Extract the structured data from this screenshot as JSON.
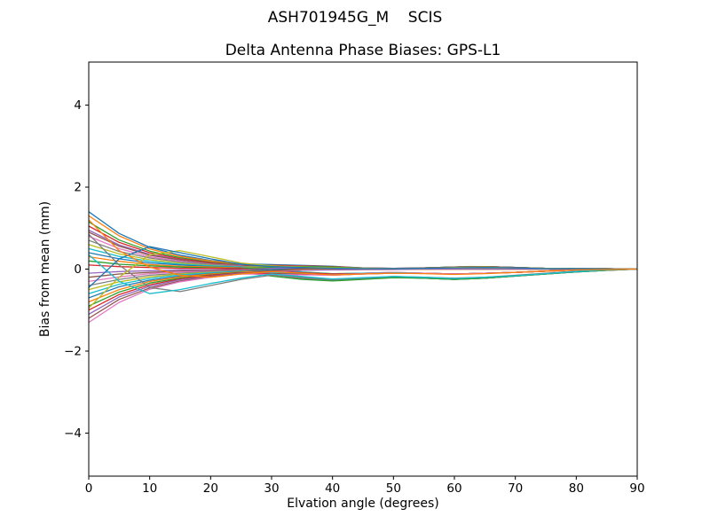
{
  "figure": {
    "suptitle": "ASH701945G_M    SCIS",
    "axes_title": "Delta Antenna Phase Biases: GPS-L1"
  },
  "chart_data": {
    "type": "line",
    "title": "Delta Antenna Phase Biases: GPS-L1",
    "suptitle": "ASH701945G_M    SCIS",
    "xlabel": "Elvation angle (degrees)",
    "ylabel": "Bias from mean (mm)",
    "xlim": [
      0,
      90
    ],
    "ylim": [
      -5.05,
      5.05
    ],
    "xticks": [
      0,
      10,
      20,
      30,
      40,
      50,
      60,
      70,
      80,
      90
    ],
    "yticks": [
      -4,
      -2,
      0,
      2,
      4
    ],
    "grid": false,
    "legend": "none",
    "background": "#ffffff",
    "axis_color": "#000000",
    "palette": [
      "#1f77b4",
      "#ff7f0e",
      "#2ca02c",
      "#d62728",
      "#9467bd",
      "#8c564b",
      "#e377c2",
      "#7f7f7f",
      "#bcbd22",
      "#17becf"
    ],
    "x": [
      0,
      5,
      10,
      15,
      20,
      25,
      30,
      35,
      40,
      45,
      50,
      55,
      60,
      65,
      70,
      75,
      80,
      85,
      90
    ],
    "series": [
      {
        "values": [
          1.4,
          0.87,
          0.53,
          0.34,
          0.21,
          0.13,
          0.11,
          0.09,
          0.07,
          0.03,
          0.02,
          0.03,
          0.05,
          0.06,
          0.04,
          0.02,
          0.01,
          0.01,
          0
        ]
      },
      {
        "values": [
          1.3,
          0.81,
          0.49,
          0.31,
          0.2,
          0.12,
          0.08,
          0.04,
          0.03,
          0.01,
          0.01,
          0,
          0,
          0,
          0,
          0,
          0,
          0,
          0
        ]
      },
      {
        "values": [
          1.15,
          0.71,
          0.44,
          0.28,
          0.17,
          0.1,
          0.02,
          -0.07,
          -0.11,
          -0.1,
          -0.08,
          -0.1,
          -0.12,
          -0.1,
          -0.08,
          -0.05,
          -0.02,
          -0.01,
          0
        ]
      },
      {
        "values": [
          1.05,
          0.65,
          0.4,
          0.25,
          0.16,
          0.09,
          0.09,
          0.08,
          0.06,
          0.03,
          0.02,
          0.03,
          0.05,
          0.06,
          0.04,
          0.02,
          0.01,
          0.01,
          0
        ]
      },
      {
        "values": [
          0.95,
          0.59,
          0.36,
          0.23,
          0.14,
          0.09,
          -0.06,
          -0.19,
          -0.25,
          -0.23,
          -0.19,
          -0.22,
          -0.25,
          -0.22,
          -0.17,
          -0.12,
          -0.07,
          -0.03,
          0
        ]
      },
      {
        "values": [
          0.9,
          0.56,
          0.34,
          0.22,
          0.14,
          0.08,
          0.05,
          0.03,
          0.02,
          0.01,
          0.01,
          0,
          0,
          0,
          0,
          0,
          0,
          0,
          0
        ]
      },
      {
        "values": [
          0.8,
          0.5,
          0.3,
          0.19,
          0.12,
          0.07,
          0.0,
          -0.08,
          -0.12,
          -0.1,
          -0.08,
          -0.1,
          -0.12,
          -0.1,
          -0.08,
          -0.05,
          -0.02,
          -0.01,
          0
        ]
      },
      {
        "values": [
          0.7,
          0.43,
          0.27,
          0.17,
          0.11,
          0.06,
          0.07,
          0.07,
          0.05,
          0.03,
          0.02,
          0.03,
          0.05,
          0.06,
          0.04,
          0.02,
          0.01,
          0.01,
          0
        ]
      },
      {
        "values": [
          0.6,
          0.37,
          0.23,
          0.14,
          0.09,
          0.05,
          0.04,
          0.02,
          0.01,
          0.01,
          0,
          0,
          0,
          0,
          0,
          0,
          0,
          0,
          0
        ]
      },
      {
        "values": [
          0.5,
          0.31,
          0.19,
          0.12,
          0.08,
          0.05,
          -0.02,
          -0.08,
          -0.12,
          -0.1,
          -0.09,
          -0.1,
          -0.12,
          -0.1,
          -0.08,
          -0.05,
          -0.02,
          -0.01,
          0
        ]
      },
      {
        "values": [
          0.4,
          0.25,
          0.15,
          0.1,
          0.06,
          0.04,
          -0.1,
          -0.21,
          -0.26,
          -0.23,
          -0.2,
          -0.22,
          -0.25,
          -0.22,
          -0.17,
          -0.12,
          -0.07,
          -0.03,
          0
        ]
      },
      {
        "values": [
          0.3,
          0.19,
          0.11,
          0.07,
          0.05,
          0.03,
          0.02,
          0.01,
          0.01,
          0,
          0,
          0,
          0,
          0,
          0,
          0,
          0,
          0,
          0
        ]
      },
      {
        "values": [
          0.2,
          0.12,
          0.08,
          0.05,
          0.03,
          0.02,
          0.04,
          0.06,
          0.05,
          0.02,
          0.01,
          0.03,
          0.05,
          0.06,
          0.04,
          0.02,
          0.01,
          0.01,
          0
        ]
      },
      {
        "values": [
          0.1,
          0.06,
          0.04,
          0.02,
          0.02,
          0.01,
          -0.04,
          -0.09,
          -0.12,
          -0.11,
          -0.09,
          -0.1,
          -0.12,
          -0.1,
          -0.08,
          -0.05,
          -0.02,
          -0.01,
          0
        ]
      },
      {
        "values": [
          -0.1,
          -0.06,
          -0.04,
          -0.02,
          -0.02,
          -0.01,
          0.02,
          0.04,
          0.03,
          0.01,
          0.0,
          0.02,
          0.04,
          0.05,
          0.03,
          0.02,
          0.01,
          0,
          0
        ]
      },
      {
        "values": [
          -0.2,
          -0.12,
          -0.08,
          -0.05,
          -0.03,
          -0.02,
          -0.01,
          -0.01,
          0,
          0,
          0,
          0,
          0,
          0,
          0,
          0,
          0,
          0,
          0
        ]
      },
      {
        "values": [
          -0.3,
          -0.19,
          -0.11,
          -0.07,
          -0.05,
          -0.03,
          -0.07,
          -0.11,
          -0.14,
          -0.11,
          -0.09,
          -0.1,
          -0.12,
          -0.1,
          -0.08,
          -0.05,
          -0.02,
          -0.01,
          0
        ]
      },
      {
        "values": [
          -0.4,
          -0.25,
          -0.15,
          -0.1,
          -0.06,
          -0.04,
          -0.14,
          -0.23,
          -0.28,
          -0.24,
          -0.2,
          -0.22,
          -0.25,
          -0.22,
          -0.17,
          -0.12,
          -0.07,
          -0.03,
          0
        ]
      },
      {
        "values": [
          -0.5,
          -0.31,
          -0.19,
          -0.12,
          -0.08,
          -0.05,
          -0.03,
          -0.02,
          -0.01,
          -0.01,
          0,
          0,
          0,
          0,
          0,
          0,
          0,
          0,
          0
        ]
      },
      {
        "values": [
          -0.6,
          -0.37,
          -0.23,
          -0.14,
          -0.09,
          -0.05,
          -0.09,
          -0.12,
          -0.14,
          -0.12,
          -0.09,
          -0.1,
          -0.12,
          -0.1,
          -0.08,
          -0.05,
          -0.02,
          -0.01,
          0
        ]
      },
      {
        "values": [
          -0.7,
          -0.43,
          -0.27,
          -0.17,
          -0.11,
          -0.06,
          -0.01,
          0.02,
          0.02,
          0.01,
          0.01,
          0.03,
          0.05,
          0.06,
          0.04,
          0.02,
          0.01,
          0.01,
          0
        ]
      },
      {
        "values": [
          -0.8,
          -0.5,
          -0.3,
          -0.19,
          -0.12,
          -0.07,
          -0.05,
          -0.02,
          -0.02,
          -0.01,
          -0.01,
          0,
          0,
          0,
          0,
          0,
          0,
          0,
          0
        ]
      },
      {
        "values": [
          -0.9,
          -0.56,
          -0.34,
          -0.22,
          -0.14,
          -0.08,
          -0.17,
          -0.25,
          -0.29,
          -0.25,
          -0.21,
          -0.22,
          -0.25,
          -0.22,
          -0.17,
          -0.12,
          -0.07,
          -0.03,
          0
        ]
      },
      {
        "values": [
          -1.0,
          -0.62,
          -0.38,
          -0.24,
          -0.15,
          -0.09,
          -0.11,
          -0.13,
          -0.15,
          -0.12,
          -0.1,
          -0.1,
          -0.12,
          -0.1,
          -0.08,
          -0.05,
          -0.02,
          -0.01,
          0
        ]
      },
      {
        "values": [
          -1.1,
          -0.68,
          -0.42,
          -0.26,
          -0.17,
          -0.1,
          -0.07,
          -0.03,
          -0.02,
          -0.01,
          -0.01,
          0,
          0,
          0,
          0,
          0,
          0,
          0,
          0
        ]
      },
      {
        "values": [
          -1.2,
          -0.74,
          -0.46,
          -0.29,
          -0.18,
          -0.11,
          -0.04,
          0.01,
          0.02,
          0.01,
          0.01,
          0.03,
          0.05,
          0.06,
          0.04,
          0.02,
          0.01,
          0.01,
          0
        ]
      },
      {
        "values": [
          -1.3,
          -0.81,
          -0.49,
          -0.31,
          -0.2,
          -0.12,
          -0.13,
          -0.14,
          -0.15,
          -0.12,
          -0.1,
          -0.1,
          -0.12,
          -0.1,
          -0.08,
          -0.05,
          -0.02,
          -0.01,
          0
        ]
      },
      {
        "values": [
          0.85,
          0.1,
          -0.45,
          -0.55,
          -0.4,
          -0.25,
          -0.15,
          -0.2,
          -0.25,
          -0.22,
          -0.18,
          -0.2,
          -0.22,
          -0.2,
          -0.15,
          -0.1,
          -0.05,
          -0.02,
          0
        ]
      },
      {
        "values": [
          -0.95,
          -0.2,
          0.35,
          0.45,
          0.3,
          0.15,
          0.08,
          0.05,
          0.03,
          0.02,
          0.01,
          0.02,
          0.04,
          0.05,
          0.03,
          0.02,
          0.01,
          0,
          0
        ]
      },
      {
        "values": [
          0.35,
          -0.3,
          -0.6,
          -0.5,
          -0.35,
          -0.22,
          -0.12,
          -0.18,
          -0.24,
          -0.21,
          -0.18,
          -0.2,
          -0.23,
          -0.2,
          -0.16,
          -0.11,
          -0.06,
          -0.02,
          0
        ]
      },
      {
        "values": [
          -0.45,
          0.25,
          0.55,
          0.4,
          0.25,
          0.12,
          0.06,
          0.04,
          0.02,
          0.01,
          0.01,
          0.02,
          0.03,
          0.04,
          0.03,
          0.01,
          0.01,
          0,
          0
        ]
      },
      {
        "values": [
          1.2,
          0.45,
          0.05,
          -0.15,
          -0.2,
          -0.12,
          -0.06,
          -0.1,
          -0.14,
          -0.12,
          -0.1,
          -0.11,
          -0.13,
          -0.11,
          -0.08,
          -0.05,
          -0.02,
          -0.01,
          0
        ]
      }
    ]
  }
}
